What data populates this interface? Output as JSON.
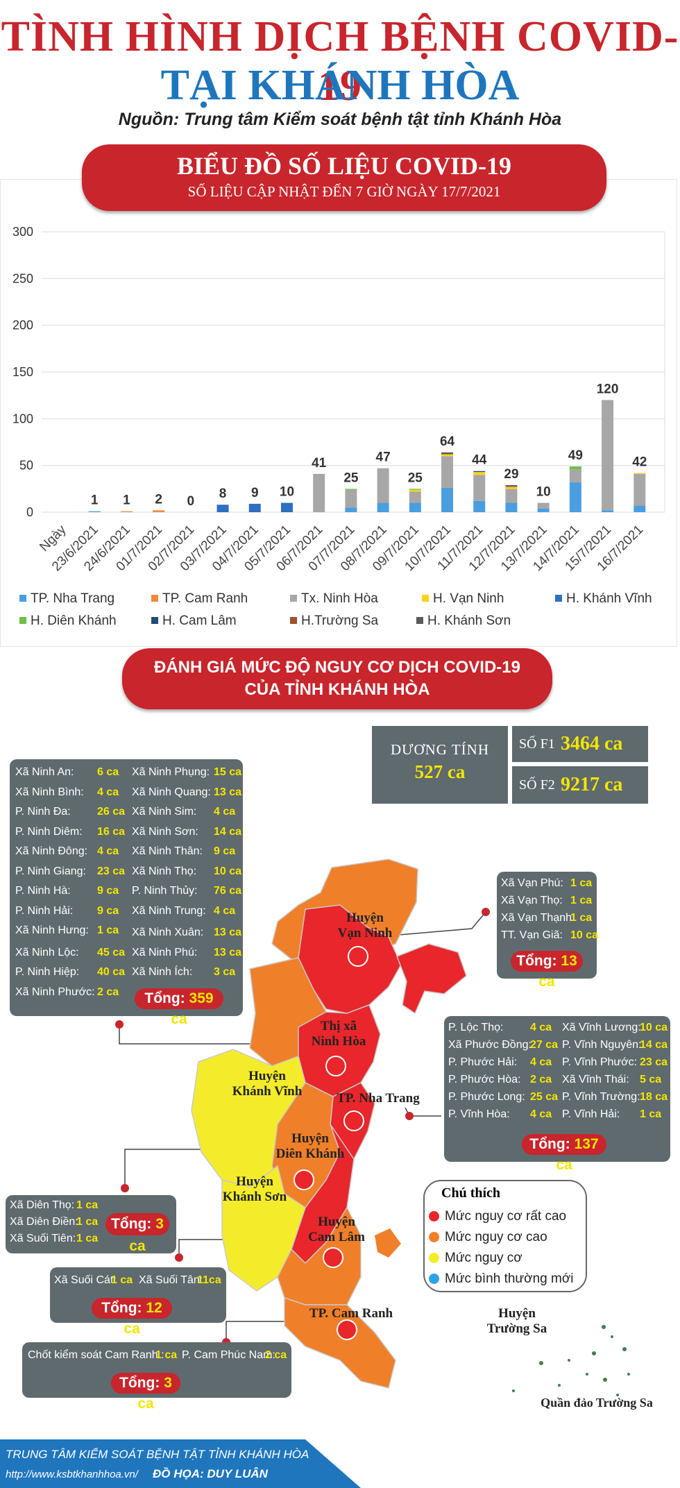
{
  "header": {
    "title_line1": "TÌNH HÌNH DỊCH BỆNH COVID-19",
    "title_line2": "TẠI KHÁNH HÒA",
    "source": "Nguồn: Trung tâm Kiểm soát bệnh tật tỉnh Khánh Hòa"
  },
  "chart_banner": {
    "title": "BIỂU ĐỒ SỐ LIỆU COVID-19",
    "subtitle": "SỐ LIỆU CẬP NHẬT ĐẾN 7 GIỜ NGÀY 17/7/2021"
  },
  "chart_data": {
    "type": "bar",
    "stacked": true,
    "ylim": [
      0,
      300
    ],
    "yticks": [
      0,
      50,
      100,
      150,
      200,
      250,
      300
    ],
    "categories": [
      "Ngày",
      "23/6/2021",
      "24/6/2021",
      "01/7/2021",
      "02/7/2021",
      "03/7/2021",
      "04/7/2021",
      "05/7/2021",
      "06/7/2021",
      "07/7/2021",
      "08/7/2021",
      "09/7/2021",
      "10/7/2021",
      "11/7/2021",
      "12/7/2021",
      "13/7/2021",
      "14/7/2021",
      "15/7/2021",
      "16/7/2021"
    ],
    "totals": [
      null,
      1,
      1,
      2,
      0,
      8,
      9,
      10,
      41,
      25,
      47,
      25,
      64,
      44,
      29,
      10,
      49,
      120,
      42
    ],
    "series": [
      {
        "name": "TP. Nha Trang",
        "color": "#4a9ee0",
        "values": [
          0,
          1,
          0,
          0,
          0,
          0,
          0,
          0,
          0,
          5,
          10,
          10,
          26,
          12,
          10,
          4,
          32,
          2,
          7
        ]
      },
      {
        "name": "TP. Cam Ranh",
        "color": "#f08a3c",
        "values": [
          0,
          0,
          1,
          2,
          0,
          0,
          0,
          0,
          0,
          0,
          0,
          0,
          0,
          0,
          0,
          0,
          0,
          0,
          0
        ]
      },
      {
        "name": "Tx. Ninh Hòa",
        "color": "#a7a7a7",
        "values": [
          0,
          0,
          0,
          0,
          0,
          0,
          0,
          0,
          41,
          19,
          37,
          12,
          34,
          28,
          15,
          6,
          14,
          118,
          34
        ]
      },
      {
        "name": "H. Vạn Ninh",
        "color": "#ffd11a",
        "values": [
          0,
          0,
          0,
          0,
          0,
          0,
          0,
          0,
          0,
          0,
          0,
          2,
          2,
          3,
          2,
          0,
          0,
          0,
          1
        ]
      },
      {
        "name": "H. Khánh Vĩnh",
        "color": "#2e6fc0",
        "values": [
          0,
          0,
          0,
          0,
          0,
          8,
          9,
          10,
          0,
          0,
          0,
          0,
          0,
          0,
          0,
          0,
          0,
          0,
          0
        ]
      },
      {
        "name": "H. Diên Khánh",
        "color": "#6fbf4a",
        "values": [
          0,
          0,
          0,
          0,
          0,
          0,
          0,
          0,
          0,
          1,
          0,
          1,
          0,
          0,
          0,
          0,
          3,
          0,
          0
        ]
      },
      {
        "name": "H. Cam Lâm",
        "color": "#1f4e79",
        "values": [
          0,
          0,
          0,
          0,
          0,
          0,
          0,
          0,
          0,
          0,
          0,
          0,
          0,
          1,
          0,
          0,
          0,
          0,
          0
        ]
      },
      {
        "name": "H.Trường Sa",
        "color": "#a0522d",
        "values": [
          0,
          0,
          0,
          0,
          0,
          0,
          0,
          0,
          0,
          0,
          0,
          0,
          0,
          0,
          1,
          0,
          0,
          0,
          0
        ]
      },
      {
        "name": "H. Khánh Sơn",
        "color": "#5a5a5a",
        "values": [
          0,
          0,
          0,
          0,
          0,
          0,
          0,
          0,
          0,
          0,
          0,
          0,
          2,
          0,
          1,
          0,
          0,
          0,
          0
        ]
      }
    ],
    "legend_position": "bottom",
    "grid": true
  },
  "risk_banner": {
    "line1": "ĐÁNH GIÁ MỨC ĐỘ NGUY CƠ DỊCH COVID-19",
    "line2": "CỦA TỈNH KHÁNH HÒA"
  },
  "stats": {
    "positive_label": "DƯƠNG TÍNH",
    "positive_value": "527 ca",
    "f1_label": "SỐ F1",
    "f1_value": "3464 ca",
    "f2_label": "SỐ F2",
    "f2_value": "9217 ca"
  },
  "panels": {
    "ninh_hoa": {
      "left": [
        [
          "Xã Ninh An:",
          "6 ca"
        ],
        [
          "Xã Ninh Bình:",
          "4 ca"
        ],
        [
          "P. Ninh Đa:",
          "26 ca"
        ],
        [
          "P. Ninh Diêm:",
          "16 ca"
        ],
        [
          "Xã Ninh Đông:",
          "4 ca"
        ],
        [
          "P. Ninh Giang:",
          "23 ca"
        ],
        [
          "P. Ninh Hà:",
          "9 ca"
        ],
        [
          "P. Ninh Hải:",
          "9 ca"
        ],
        [
          "Xã Ninh Hưng:",
          "1 ca"
        ],
        [
          "Xã Ninh Lộc:",
          "45 ca"
        ],
        [
          "P. Ninh Hiệp:",
          "40 ca"
        ],
        [
          "Xã Ninh Phước:",
          "2 ca"
        ]
      ],
      "right": [
        [
          "Xã Ninh Phụng:",
          "15 ca"
        ],
        [
          "Xã Ninh Quang:",
          "13 ca"
        ],
        [
          "Xã Ninh Sim:",
          "4 ca"
        ],
        [
          "Xã Ninh Sơn:",
          "14 ca"
        ],
        [
          "Xã Ninh Thân:",
          "9 ca"
        ],
        [
          "Xã Ninh Thọ:",
          "10 ca"
        ],
        [
          "P. Ninh Thủy:",
          "76 ca"
        ],
        [
          "Xã Ninh Trung:",
          "4 ca"
        ],
        [
          "Xã Ninh Xuân:",
          "13 ca"
        ],
        [
          "Xã Ninh Phú:",
          "13 ca"
        ],
        [
          "Xã Ninh Ích:",
          "3 ca"
        ]
      ],
      "total_label": "Tổng:",
      "total_value": "359 ca"
    },
    "van_ninh": {
      "rows": [
        [
          "Xã Vạn Phú:",
          "1 ca"
        ],
        [
          "Xã Vạn Thọ:",
          "1 ca"
        ],
        [
          "Xã Vạn Thạnh:",
          "1 ca"
        ],
        [
          "TT. Vạn Giã:",
          "10 ca"
        ]
      ],
      "total_label": "Tổng:",
      "total_value": "13 ca"
    },
    "nha_trang": {
      "left": [
        [
          "P. Lộc Thọ:",
          "4 ca"
        ],
        [
          "Xã Phước Đồng:",
          "27 ca"
        ],
        [
          "P. Phước Hải:",
          "4 ca"
        ],
        [
          "P. Phước Hòa:",
          "2 ca"
        ],
        [
          "P. Phước Long:",
          "25 ca"
        ],
        [
          "P. Vĩnh Hòa:",
          "4 ca"
        ]
      ],
      "right": [
        [
          "Xã Vĩnh Lương:",
          "10 ca"
        ],
        [
          "P. Vĩnh Nguyên:",
          "14 ca"
        ],
        [
          "P. Vĩnh Phước:",
          "23 ca"
        ],
        [
          "Xã Vĩnh Thái:",
          "5 ca"
        ],
        [
          "P. Vĩnh Trường:",
          "18 ca"
        ],
        [
          "P. Vĩnh Hải:",
          "1 ca"
        ]
      ],
      "total_label": "Tổng:",
      "total_value": "137 ca"
    },
    "dien_khanh": {
      "rows": [
        [
          "Xã Diên Thọ:",
          "1 ca"
        ],
        [
          "Xã Diên Điền:",
          "1 ca"
        ],
        [
          "Xã Suối Tiên:",
          "1 ca"
        ]
      ],
      "total_label": "Tổng:",
      "total_value": "3 ca"
    },
    "cam_lam": {
      "rows": [
        [
          "Xã Suối Cát:",
          "1 ca"
        ],
        [
          "Xã Suối Tân:",
          "11ca"
        ]
      ],
      "total_label": "Tổng:",
      "total_value": "12 ca"
    },
    "cam_ranh": {
      "rows": [
        [
          "Chốt kiểm soát Cam Ranh :",
          "1 ca"
        ],
        [
          "P. Cam Phúc Nam:",
          "2 ca"
        ]
      ],
      "total_label": "Tổng:",
      "total_value": "3 ca"
    }
  },
  "map_labels": {
    "van_ninh": "Huyện\nVạn Ninh",
    "ninh_hoa": "Thị xã\nNinh Hòa",
    "khanh_vinh": "Huyện\nKhánh Vĩnh",
    "nha_trang": "TP. Nha Trang",
    "dien_khanh": "Huyện\nDiên Khánh",
    "khanh_son": "Huyện\nKhánh Sơn",
    "cam_lam": "Huyện\nCam Lâm",
    "cam_ranh": "TP. Cam Ranh",
    "truong_sa": "Huyện\nTrường Sa",
    "quan_dao": "Quần đảo Trường Sa"
  },
  "map_legend": {
    "title": "Chú thích",
    "items": [
      {
        "label": "Mức nguy cơ rất cao",
        "color": "#e8262b"
      },
      {
        "label": "Mức nguy cơ cao",
        "color": "#f07f2a"
      },
      {
        "label": "Mức nguy cơ",
        "color": "#f4ec2a"
      },
      {
        "label": "Mức bình thường mới",
        "color": "#2ea3e6"
      }
    ]
  },
  "colors": {
    "very_high": "#e8262b",
    "high": "#f07f2a",
    "risk": "#f4ec2a"
  },
  "footer": {
    "line1": "TRUNG TÂM KIỂM SOÁT BỆNH TẬT TỈNH KHÁNH HÒA",
    "url": "http://www.ksbtkhanhhoa.vn/",
    "credit": "ĐỒ HỌA: DUY LUÂN"
  }
}
